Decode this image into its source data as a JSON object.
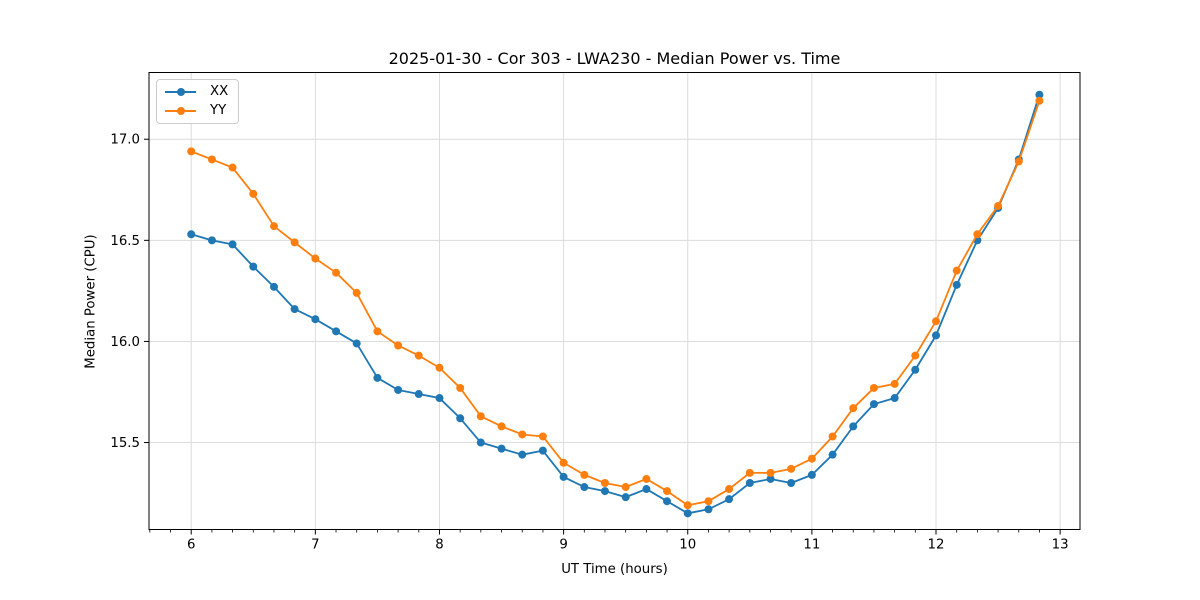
{
  "chart_data": {
    "type": "line",
    "title": "2025-01-30 - Cor 303 - LWA230 - Median Power vs. Time",
    "xlabel": "UT Time (hours)",
    "ylabel": "Median Power (CPU)",
    "x": [
      6.0,
      6.167,
      6.333,
      6.5,
      6.667,
      6.833,
      7.0,
      7.167,
      7.333,
      7.5,
      7.667,
      7.833,
      8.0,
      8.167,
      8.333,
      8.5,
      8.667,
      8.833,
      9.0,
      9.167,
      9.333,
      9.5,
      9.667,
      9.833,
      10.0,
      10.167,
      10.333,
      10.5,
      10.667,
      10.833,
      11.0,
      11.167,
      11.333,
      11.5,
      11.667,
      11.833,
      12.0,
      12.167,
      12.333,
      12.5,
      12.667,
      12.833
    ],
    "series": [
      {
        "name": "XX",
        "color": "#1f77b4",
        "values": [
          16.53,
          16.5,
          16.48,
          16.37,
          16.27,
          16.16,
          16.11,
          16.05,
          15.99,
          15.82,
          15.76,
          15.74,
          15.72,
          15.62,
          15.5,
          15.47,
          15.44,
          15.46,
          15.33,
          15.28,
          15.26,
          15.23,
          15.27,
          15.21,
          15.15,
          15.17,
          15.22,
          15.3,
          15.32,
          15.3,
          15.34,
          15.44,
          15.58,
          15.69,
          15.72,
          15.86,
          16.03,
          16.28,
          16.5,
          16.66,
          16.9,
          17.22
        ]
      },
      {
        "name": "YY",
        "color": "#ff7f0e",
        "values": [
          16.94,
          16.9,
          16.86,
          16.73,
          16.57,
          16.49,
          16.41,
          16.34,
          16.24,
          16.05,
          15.98,
          15.93,
          15.87,
          15.77,
          15.63,
          15.58,
          15.54,
          15.53,
          15.4,
          15.34,
          15.3,
          15.28,
          15.32,
          15.26,
          15.19,
          15.21,
          15.27,
          15.35,
          15.35,
          15.37,
          15.42,
          15.53,
          15.67,
          15.77,
          15.79,
          15.93,
          16.1,
          16.35,
          16.53,
          16.67,
          16.89,
          17.19
        ]
      }
    ],
    "xlim": [
      5.66,
      13.16
    ],
    "ylim": [
      15.07,
      17.33
    ],
    "xticks": [
      6,
      7,
      8,
      9,
      10,
      11,
      12,
      13
    ],
    "yticks": [
      15.5,
      16.0,
      16.5,
      17.0
    ],
    "ytick_labels": [
      "15.5",
      "16.0",
      "16.5",
      "17.0"
    ],
    "x_minor_tick_interval": 0.16667,
    "grid": true,
    "legend_position": "upper left",
    "colors": {
      "grid": "#dcdcdc",
      "axis": "#000000",
      "tick_label": "#000000",
      "background": "#ffffff"
    }
  }
}
